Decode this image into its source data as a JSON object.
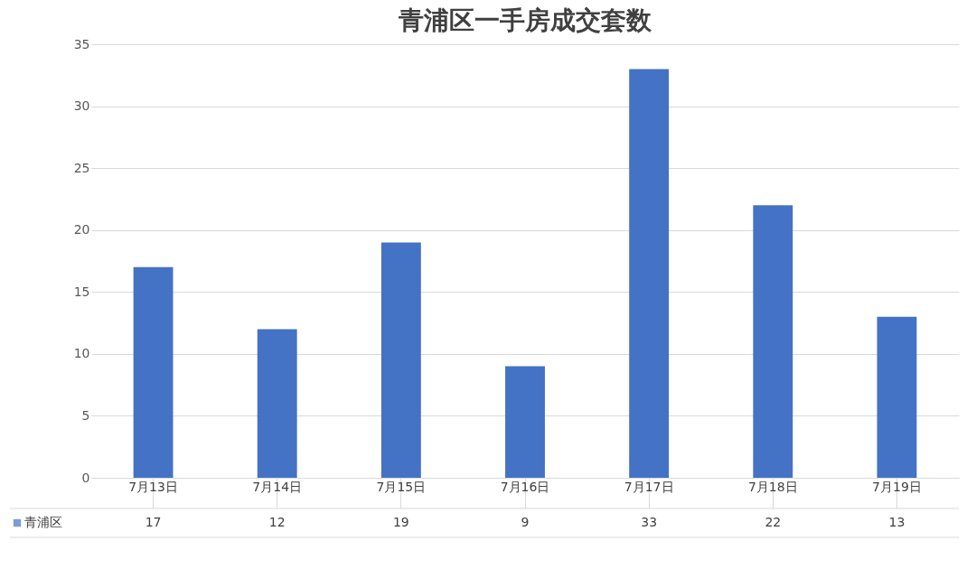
{
  "chart_data": {
    "type": "bar",
    "title": "青浦区一手房成交套数",
    "categories": [
      "7月13日",
      "7月14日",
      "7月15日",
      "7月16日",
      "7月17日",
      "7月18日",
      "7月19日"
    ],
    "series": [
      {
        "name": "青浦区",
        "color": "#4472c4",
        "values": [
          17,
          12,
          19,
          9,
          33,
          22,
          13
        ]
      }
    ],
    "ylim": [
      0,
      35
    ],
    "yticks": [
      0,
      5,
      10,
      15,
      20,
      25,
      30,
      35
    ],
    "grid": "y",
    "data_labels": true
  }
}
